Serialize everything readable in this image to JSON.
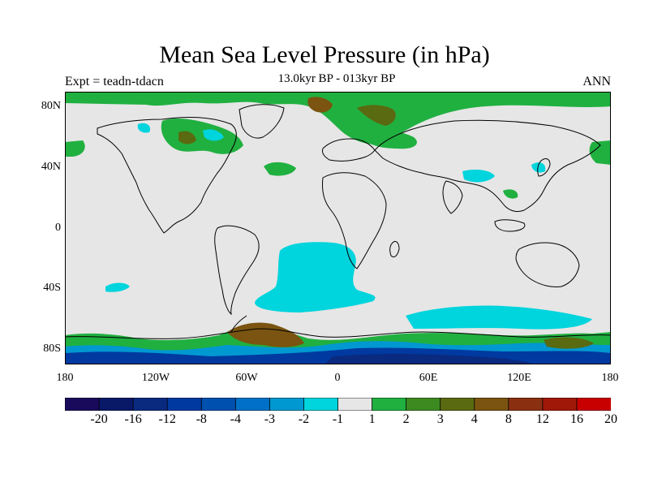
{
  "title": "Mean Sea Level Pressure (in hPa)",
  "subtitle": "13.0kyr BP - 013kyr BP",
  "expt_label": "Expt = teadn-tdacn",
  "season_label": "ANN",
  "y_axis_labels": [
    "80N",
    "40N",
    "0",
    "40S",
    "80S"
  ],
  "x_axis_labels": [
    "180",
    "120W",
    "60W",
    "0",
    "60E",
    "120E",
    "180"
  ],
  "colorbar": {
    "colors": [
      "#1a0a5c",
      "#0a1868",
      "#0a2a80",
      "#003aa0",
      "#0050b0",
      "#0070c8",
      "#0098d0",
      "#00d4dc",
      "#e6e6e6",
      "#20b040",
      "#3c8a20",
      "#5a6a10",
      "#7a5410",
      "#8a3010",
      "#a01808",
      "#c80000"
    ],
    "labels": [
      "-20",
      "-16",
      "-12",
      "-8",
      "-4",
      "-3",
      "-2",
      "-1",
      "1",
      "2",
      "3",
      "4",
      "8",
      "12",
      "16",
      "20"
    ]
  }
}
